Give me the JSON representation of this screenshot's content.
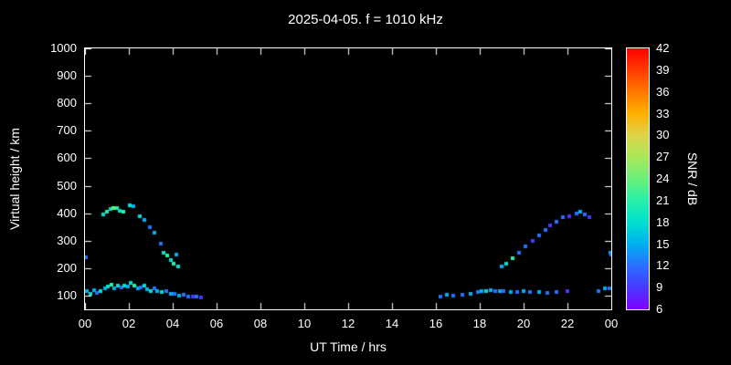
{
  "colors": {
    "background": "#000000",
    "foreground": "#ffffff"
  },
  "chart_data": {
    "type": "scatter",
    "title": "2025-04-05. f = 1010 kHz",
    "xlabel": "UT Time / hrs",
    "ylabel": "Virtual height / km",
    "colorbar_label": "SNR / dB",
    "xlim": [
      0,
      24
    ],
    "ylim": [
      50,
      1000
    ],
    "grid": false,
    "x_ticks": [
      {
        "t": 0,
        "label": "00"
      },
      {
        "t": 2,
        "label": "02"
      },
      {
        "t": 4,
        "label": "04"
      },
      {
        "t": 6,
        "label": "06"
      },
      {
        "t": 8,
        "label": "08"
      },
      {
        "t": 10,
        "label": "10"
      },
      {
        "t": 12,
        "label": "12"
      },
      {
        "t": 14,
        "label": "14"
      },
      {
        "t": 16,
        "label": "16"
      },
      {
        "t": 18,
        "label": "18"
      },
      {
        "t": 20,
        "label": "20"
      },
      {
        "t": 22,
        "label": "22"
      },
      {
        "t": 24,
        "label": "00"
      }
    ],
    "y_ticks": [
      {
        "v": 100,
        "label": "100"
      },
      {
        "v": 200,
        "label": "200"
      },
      {
        "v": 300,
        "label": "300"
      },
      {
        "v": 400,
        "label": "400"
      },
      {
        "v": 500,
        "label": "500"
      },
      {
        "v": 600,
        "label": "600"
      },
      {
        "v": 700,
        "label": "700"
      },
      {
        "v": 800,
        "label": "800"
      },
      {
        "v": 900,
        "label": "900"
      },
      {
        "v": 1000,
        "label": "1000"
      }
    ],
    "colorbar_ticks": [
      "42",
      "39",
      "36",
      "33",
      "30",
      "27",
      "24",
      "21",
      "18",
      "15",
      "12",
      "9",
      "6"
    ],
    "colormap": [
      {
        "snr": 42,
        "color": "#ff0000"
      },
      {
        "snr": 39,
        "color": "#ff3c00"
      },
      {
        "snr": 36,
        "color": "#ff7800"
      },
      {
        "snr": 33,
        "color": "#ffb000"
      },
      {
        "snr": 30,
        "color": "#ddd24a"
      },
      {
        "snr": 27,
        "color": "#a8e858"
      },
      {
        "snr": 24,
        "color": "#68f078"
      },
      {
        "snr": 21,
        "color": "#28f0a8"
      },
      {
        "snr": 18,
        "color": "#00e0d0"
      },
      {
        "snr": 15,
        "color": "#00b0f0"
      },
      {
        "snr": 12,
        "color": "#2a70ff"
      },
      {
        "snr": 9,
        "color": "#4838ff"
      },
      {
        "snr": 6,
        "color": "#8000ff"
      }
    ],
    "points": [
      [
        0.05,
        240,
        12
      ],
      [
        0.1,
        115,
        15
      ],
      [
        0.25,
        108,
        18
      ],
      [
        0.4,
        120,
        15
      ],
      [
        0.55,
        110,
        12
      ],
      [
        0.7,
        118,
        18
      ],
      [
        0.9,
        125,
        15
      ],
      [
        1.05,
        132,
        18
      ],
      [
        1.2,
        140,
        21
      ],
      [
        1.35,
        128,
        15
      ],
      [
        1.5,
        135,
        18
      ],
      [
        1.65,
        130,
        12
      ],
      [
        1.8,
        138,
        18
      ],
      [
        1.95,
        132,
        15
      ],
      [
        2.1,
        145,
        18
      ],
      [
        2.25,
        138,
        21
      ],
      [
        2.4,
        125,
        15
      ],
      [
        2.55,
        130,
        12
      ],
      [
        2.7,
        135,
        18
      ],
      [
        2.85,
        122,
        15
      ],
      [
        3.0,
        118,
        18
      ],
      [
        3.15,
        125,
        12
      ],
      [
        3.3,
        115,
        15
      ],
      [
        3.5,
        112,
        18
      ],
      [
        3.7,
        118,
        12
      ],
      [
        3.9,
        108,
        15
      ],
      [
        4.1,
        105,
        12
      ],
      [
        4.3,
        100,
        15
      ],
      [
        4.5,
        102,
        12
      ],
      [
        4.7,
        98,
        12
      ],
      [
        4.9,
        95,
        9
      ],
      [
        5.1,
        95,
        12
      ],
      [
        5.3,
        92,
        9
      ],
      [
        0.85,
        395,
        18
      ],
      [
        1.0,
        405,
        21
      ],
      [
        1.15,
        415,
        18
      ],
      [
        1.3,
        420,
        24
      ],
      [
        1.45,
        418,
        21
      ],
      [
        1.6,
        410,
        18
      ],
      [
        1.75,
        405,
        21
      ],
      [
        2.05,
        430,
        18
      ],
      [
        2.2,
        425,
        15
      ],
      [
        2.5,
        390,
        18
      ],
      [
        2.7,
        375,
        15
      ],
      [
        2.95,
        350,
        12
      ],
      [
        3.15,
        330,
        15
      ],
      [
        3.45,
        290,
        12
      ],
      [
        3.6,
        255,
        18
      ],
      [
        3.75,
        245,
        21
      ],
      [
        3.9,
        230,
        18
      ],
      [
        4.05,
        215,
        21
      ],
      [
        4.15,
        250,
        15
      ],
      [
        4.25,
        205,
        18
      ],
      [
        16.2,
        98,
        12
      ],
      [
        16.5,
        102,
        15
      ],
      [
        16.8,
        100,
        12
      ],
      [
        17.2,
        104,
        12
      ],
      [
        17.6,
        108,
        15
      ],
      [
        17.9,
        112,
        12
      ],
      [
        18.1,
        118,
        15
      ],
      [
        18.3,
        115,
        18
      ],
      [
        18.5,
        120,
        15
      ],
      [
        18.7,
        118,
        12
      ],
      [
        18.9,
        115,
        15
      ],
      [
        19.1,
        118,
        12
      ],
      [
        19.4,
        114,
        15
      ],
      [
        19.7,
        112,
        12
      ],
      [
        20.0,
        115,
        15
      ],
      [
        20.3,
        112,
        12
      ],
      [
        20.7,
        114,
        15
      ],
      [
        21.1,
        110,
        12
      ],
      [
        21.5,
        112,
        12
      ],
      [
        22.0,
        115,
        9
      ],
      [
        23.4,
        118,
        12
      ],
      [
        23.7,
        128,
        15
      ],
      [
        23.9,
        125,
        12
      ],
      [
        19.0,
        205,
        15
      ],
      [
        19.2,
        215,
        18
      ],
      [
        19.5,
        235,
        21
      ],
      [
        19.8,
        255,
        12
      ],
      [
        20.1,
        280,
        12
      ],
      [
        20.4,
        300,
        9
      ],
      [
        20.7,
        320,
        12
      ],
      [
        21.0,
        340,
        12
      ],
      [
        21.2,
        355,
        9
      ],
      [
        21.5,
        370,
        12
      ],
      [
        21.8,
        385,
        12
      ],
      [
        22.1,
        390,
        9
      ],
      [
        22.4,
        400,
        12
      ],
      [
        22.6,
        405,
        15
      ],
      [
        22.8,
        395,
        12
      ],
      [
        23.0,
        385,
        9
      ],
      [
        23.95,
        255,
        15
      ],
      [
        24.0,
        250,
        12
      ]
    ]
  }
}
